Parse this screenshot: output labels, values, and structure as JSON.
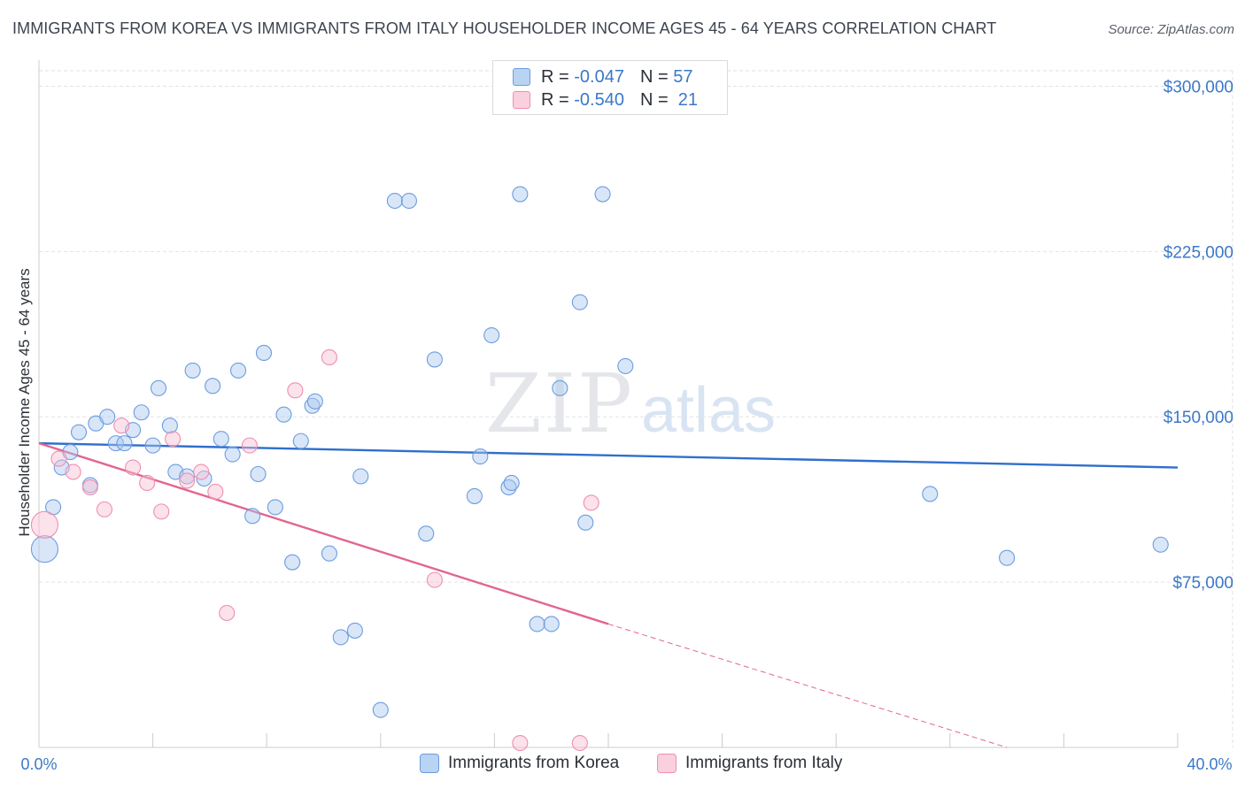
{
  "title": "IMMIGRANTS FROM KOREA VS IMMIGRANTS FROM ITALY HOUSEHOLDER INCOME AGES 45 - 64 YEARS CORRELATION CHART",
  "source": "Source: ZipAtlas.com",
  "watermark": {
    "zip": "ZIP",
    "atlas": "atlas"
  },
  "legend": {
    "r_label": "R =",
    "n_label": "N =",
    "rows": [
      {
        "r": "-0.047",
        "n": "57",
        "fill": "#b9d3f2",
        "stroke": "#6b9de0"
      },
      {
        "r": "-0.540",
        "n": "21",
        "fill": "#fbd0de",
        "stroke": "#ee8fae"
      }
    ]
  },
  "bottom_legend": [
    {
      "label": "Immigrants from Korea",
      "fill": "#b9d3f2",
      "stroke": "#6b9de0"
    },
    {
      "label": "Immigrants from Italy",
      "fill": "#fbd0de",
      "stroke": "#ee8fae"
    }
  ],
  "colors": {
    "korea_fill": "rgba(170,200,240,0.45)",
    "korea_stroke": "#6b9de0",
    "korea_line": "#2f6fcc",
    "italy_fill": "rgba(248,190,210,0.45)",
    "italy_stroke": "#ee8fae",
    "italy_line": "#e2668f",
    "tick_label": "#3b78c8",
    "grid": "#dfe2e7"
  },
  "chart_data": {
    "type": "scatter",
    "title": "IMMIGRANTS FROM KOREA VS IMMIGRANTS FROM ITALY HOUSEHOLDER INCOME AGES 45 - 64 YEARS CORRELATION CHART",
    "xlabel": "",
    "ylabel": "Householder Income Ages 45 - 64 years",
    "xlim": [
      0,
      40
    ],
    "ylim": [
      0,
      307000
    ],
    "x_tick_labels": [
      "0.0%",
      "40.0%"
    ],
    "y_ticks": [
      75000,
      150000,
      225000,
      300000
    ],
    "y_tick_labels": [
      "$75,000",
      "$150,000",
      "$225,000",
      "$300,000"
    ],
    "grid": true,
    "legend_position": "top-center",
    "series": [
      {
        "name": "Immigrants from Korea",
        "r": -0.047,
        "n": 57,
        "trend": {
          "x": [
            0,
            40
          ],
          "y": [
            138000,
            127000
          ]
        },
        "points": [
          {
            "x": 0.2,
            "y": 90000,
            "big": true
          },
          {
            "x": 0.5,
            "y": 109000
          },
          {
            "x": 0.8,
            "y": 127000
          },
          {
            "x": 1.1,
            "y": 134000
          },
          {
            "x": 1.4,
            "y": 143000
          },
          {
            "x": 1.8,
            "y": 119000
          },
          {
            "x": 2.0,
            "y": 147000
          },
          {
            "x": 2.4,
            "y": 150000
          },
          {
            "x": 2.7,
            "y": 138000
          },
          {
            "x": 3.0,
            "y": 138000
          },
          {
            "x": 3.3,
            "y": 144000
          },
          {
            "x": 3.6,
            "y": 152000
          },
          {
            "x": 4.0,
            "y": 137000
          },
          {
            "x": 4.2,
            "y": 163000
          },
          {
            "x": 4.6,
            "y": 146000
          },
          {
            "x": 4.8,
            "y": 125000
          },
          {
            "x": 5.2,
            "y": 123000
          },
          {
            "x": 5.4,
            "y": 171000
          },
          {
            "x": 5.8,
            "y": 122000
          },
          {
            "x": 6.1,
            "y": 164000
          },
          {
            "x": 6.4,
            "y": 140000
          },
          {
            "x": 6.8,
            "y": 133000
          },
          {
            "x": 7.0,
            "y": 171000
          },
          {
            "x": 7.5,
            "y": 105000
          },
          {
            "x": 7.7,
            "y": 124000
          },
          {
            "x": 7.9,
            "y": 179000
          },
          {
            "x": 8.3,
            "y": 109000
          },
          {
            "x": 8.6,
            "y": 151000
          },
          {
            "x": 8.9,
            "y": 84000
          },
          {
            "x": 9.2,
            "y": 139000
          },
          {
            "x": 9.6,
            "y": 155000
          },
          {
            "x": 9.7,
            "y": 157000
          },
          {
            "x": 10.2,
            "y": 88000
          },
          {
            "x": 10.6,
            "y": 50000
          },
          {
            "x": 11.1,
            "y": 53000
          },
          {
            "x": 11.3,
            "y": 123000
          },
          {
            "x": 12.0,
            "y": 17000
          },
          {
            "x": 12.5,
            "y": 248000
          },
          {
            "x": 13.0,
            "y": 248000
          },
          {
            "x": 13.6,
            "y": 97000
          },
          {
            "x": 13.9,
            "y": 176000
          },
          {
            "x": 15.3,
            "y": 114000
          },
          {
            "x": 15.5,
            "y": 132000
          },
          {
            "x": 15.9,
            "y": 187000
          },
          {
            "x": 16.5,
            "y": 118000
          },
          {
            "x": 16.6,
            "y": 120000
          },
          {
            "x": 16.9,
            "y": 251000
          },
          {
            "x": 17.5,
            "y": 56000
          },
          {
            "x": 18.0,
            "y": 56000
          },
          {
            "x": 18.3,
            "y": 163000
          },
          {
            "x": 19.0,
            "y": 202000
          },
          {
            "x": 19.2,
            "y": 102000
          },
          {
            "x": 19.8,
            "y": 251000
          },
          {
            "x": 20.6,
            "y": 173000
          },
          {
            "x": 31.3,
            "y": 115000
          },
          {
            "x": 34.0,
            "y": 86000
          },
          {
            "x": 39.4,
            "y": 92000
          }
        ]
      },
      {
        "name": "Immigrants from Italy",
        "r": -0.54,
        "n": 21,
        "trend": {
          "x": [
            0,
            20
          ],
          "y": [
            138000,
            56000
          ]
        },
        "trend_dashed": {
          "x": [
            20,
            34
          ],
          "y": [
            56000,
            0
          ]
        },
        "points": [
          {
            "x": 0.2,
            "y": 101000,
            "big": true
          },
          {
            "x": 0.7,
            "y": 131000
          },
          {
            "x": 1.2,
            "y": 125000
          },
          {
            "x": 1.8,
            "y": 118000
          },
          {
            "x": 2.3,
            "y": 108000
          },
          {
            "x": 2.9,
            "y": 146000
          },
          {
            "x": 3.3,
            "y": 127000
          },
          {
            "x": 3.8,
            "y": 120000
          },
          {
            "x": 4.3,
            "y": 107000
          },
          {
            "x": 4.7,
            "y": 140000
          },
          {
            "x": 5.2,
            "y": 121000
          },
          {
            "x": 5.7,
            "y": 125000
          },
          {
            "x": 6.2,
            "y": 116000
          },
          {
            "x": 6.6,
            "y": 61000
          },
          {
            "x": 7.4,
            "y": 137000
          },
          {
            "x": 9.0,
            "y": 162000
          },
          {
            "x": 10.2,
            "y": 177000
          },
          {
            "x": 13.9,
            "y": 76000
          },
          {
            "x": 16.9,
            "y": 2000
          },
          {
            "x": 19.0,
            "y": 2000
          },
          {
            "x": 19.4,
            "y": 111000
          }
        ]
      }
    ]
  }
}
